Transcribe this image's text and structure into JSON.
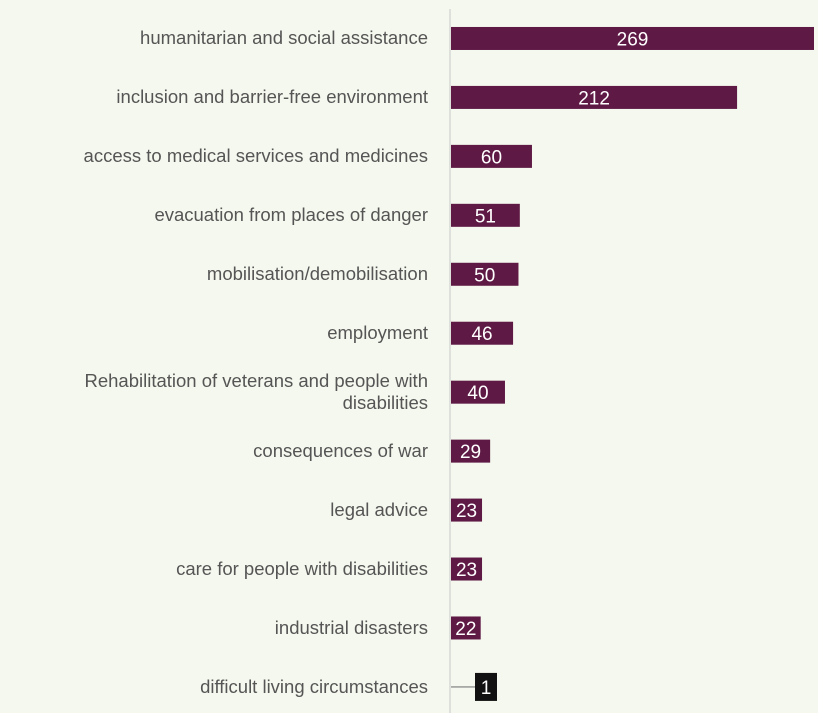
{
  "chart_data": {
    "type": "bar",
    "orientation": "horizontal",
    "categories": [
      "humanitarian and social assistance",
      "inclusion and barrier-free environment",
      "access to medical services and medicines",
      "evacuation from places of danger",
      "mobilisation/demobilisation",
      "employment",
      "Rehabilitation of veterans and people with disabilities",
      "consequences of war",
      "legal advice",
      "care for people with disabilities",
      "industrial disasters",
      "difficult living circumstances"
    ],
    "values": [
      269,
      212,
      60,
      51,
      50,
      46,
      40,
      29,
      23,
      23,
      22,
      1
    ],
    "data_labels": [
      "269",
      "212",
      "60",
      "51",
      "50",
      "46",
      "40",
      "29",
      "23",
      "23",
      "22",
      "1"
    ],
    "title": "",
    "xlabel": "",
    "ylabel": "",
    "xlim": [
      0,
      269
    ],
    "grid": false,
    "legend": "none"
  },
  "colors": {
    "background": "#f5f8ee",
    "bar": "#5e1a45",
    "label_box_small": "#111111",
    "axis": "#c8c8c8",
    "category_text": "#555555",
    "value_text": "#ffffff"
  }
}
